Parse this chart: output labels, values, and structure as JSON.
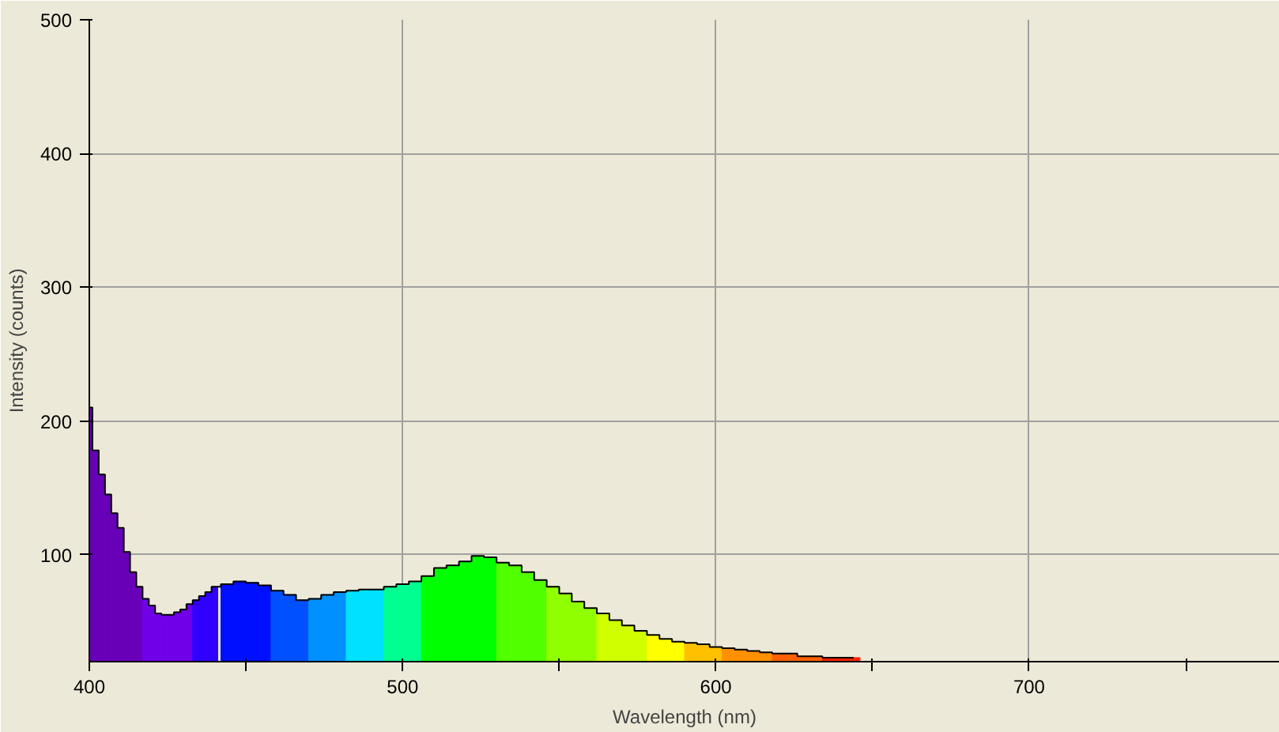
{
  "chart_data": {
    "type": "bar",
    "xlabel": "Wavelength (nm)",
    "ylabel": "Intensity (counts)",
    "x": [
      400,
      402,
      404,
      406,
      408,
      410,
      412,
      414,
      416,
      418,
      420,
      422,
      424,
      426,
      428,
      430,
      432,
      434,
      436,
      438,
      440,
      444,
      448,
      452,
      456,
      460,
      464,
      468,
      472,
      476,
      480,
      484,
      488,
      492,
      496,
      500,
      504,
      508,
      512,
      516,
      520,
      524,
      528,
      532,
      536,
      540,
      544,
      548,
      552,
      556,
      560,
      564,
      568,
      572,
      576,
      580,
      584,
      588,
      592,
      596,
      600,
      604,
      608,
      612,
      616,
      620,
      624,
      628,
      632,
      636,
      640,
      644
    ],
    "values": [
      210,
      178,
      160,
      145,
      131,
      120,
      102,
      87,
      76,
      67,
      62,
      56,
      55,
      55,
      57,
      59,
      63,
      66,
      69,
      72,
      76,
      78,
      80,
      79,
      77,
      73,
      70,
      66,
      67,
      70,
      72,
      73,
      74,
      74,
      76,
      78,
      80,
      84,
      90,
      92,
      95,
      99,
      98,
      94,
      92,
      87,
      81,
      76,
      71,
      65,
      60,
      56,
      51,
      47,
      43,
      40,
      37,
      35,
      34,
      33,
      31,
      30,
      29,
      28,
      27,
      26,
      26,
      24,
      24,
      23,
      23,
      23
    ],
    "colors": [
      "#6800b8",
      "#6800b8",
      "#6800b8",
      "#6800b8",
      "#6800b8",
      "#6800b8",
      "#6800b8",
      "#6800b8",
      "#6800b8",
      "#7000e8",
      "#7000e8",
      "#7000e8",
      "#7000e8",
      "#7000e8",
      "#7000e8",
      "#7000e8",
      "#7000e8",
      "#3000ff",
      "#3000ff",
      "#3000ff",
      "#3000ff",
      "#0010ff",
      "#0010ff",
      "#0010ff",
      "#0010ff",
      "#0050ff",
      "#0050ff",
      "#0050ff",
      "#0090ff",
      "#0090ff",
      "#0090ff",
      "#00e0ff",
      "#00e0ff",
      "#00e0ff",
      "#00ff90",
      "#00ff90",
      "#00ff90",
      "#00ff00",
      "#00ff00",
      "#00ff00",
      "#00ff00",
      "#00ff00",
      "#00ff00",
      "#50ff00",
      "#50ff00",
      "#50ff00",
      "#50ff00",
      "#90ff00",
      "#90ff00",
      "#90ff00",
      "#90ff00",
      "#d0ff00",
      "#d0ff00",
      "#d0ff00",
      "#d0ff00",
      "#ffff00",
      "#ffff00",
      "#ffff00",
      "#ffc000",
      "#ffc000",
      "#ffc000",
      "#ff9000",
      "#ff9000",
      "#ff9000",
      "#ff9000",
      "#ff6000",
      "#ff6000",
      "#ff6000",
      "#ff6000",
      "#ff2000",
      "#ff2000",
      "#ff2000"
    ],
    "xlim": [
      400,
      780
    ],
    "ylim": [
      20,
      500
    ],
    "xticks": [
      400,
      {
        "value": 450,
        "label": null
      },
      500,
      {
        "value": 550,
        "label": null
      },
      600,
      {
        "value": 650,
        "label": null
      },
      700,
      {
        "value": 750,
        "label": null
      }
    ],
    "yticks": [
      100,
      200,
      300,
      400,
      500
    ],
    "grid": true
  }
}
